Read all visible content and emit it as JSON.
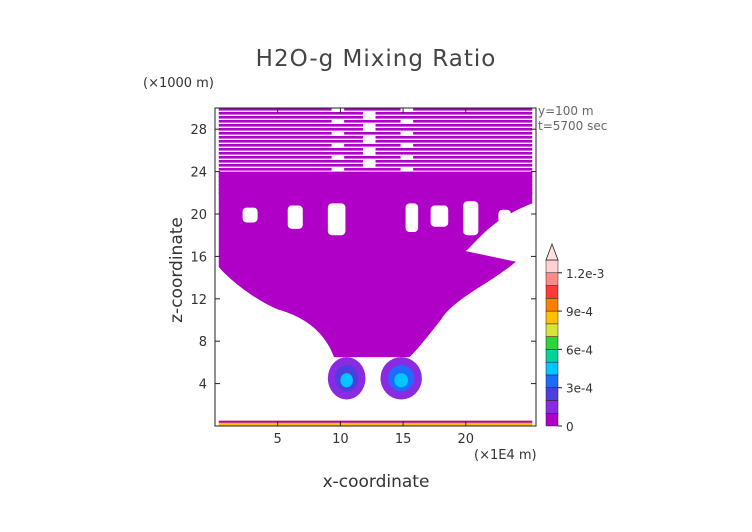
{
  "chart_data": {
    "type": "heatmap",
    "title": "H2O-g Mixing Ratio",
    "xlabel": "x-coordinate",
    "ylabel": "z-coordinate",
    "x_unit": "(×1E4 m)",
    "z_unit": "(×1000 m)",
    "xlim": [
      0,
      25.6
    ],
    "ylim": [
      0,
      30
    ],
    "x_ticks": [
      5,
      10,
      15,
      20
    ],
    "x_tick_labels": [
      "5",
      "10",
      "15",
      "20"
    ],
    "y_ticks": [
      4,
      8,
      12,
      16,
      20,
      24,
      28
    ],
    "y_tick_labels": [
      "4",
      "8",
      "12",
      "16",
      "20",
      "24",
      "28"
    ],
    "annotations": [
      "y=100 m",
      "t=5700 sec"
    ],
    "colorbar": {
      "min": 0,
      "max": 0.0013,
      "ticks": [
        0,
        0.0003,
        0.0006,
        0.0009,
        0.0012
      ],
      "tick_labels": [
        "0",
        "3e-4",
        "6e-4",
        "9e-4",
        "1.2e-3"
      ],
      "extend": "max",
      "colors": [
        "#b000c8",
        "#8a2be2",
        "#4b3fe0",
        "#1e6bff",
        "#00c8ff",
        "#00d49a",
        "#2ed23a",
        "#d8e23a",
        "#ffc000",
        "#ff8000",
        "#ff3a3a",
        "#ff8a8a",
        "#ffd0d0"
      ]
    },
    "features": [
      {
        "name": "upper-moist-layer",
        "value": 3e-05,
        "x_range": [
          0.3,
          25.3
        ],
        "z_range": [
          6,
          30
        ]
      },
      {
        "name": "convective-core-left",
        "value": 0.00045,
        "x_range": [
          9.0,
          12.0
        ],
        "z_range": [
          2.5,
          6.5
        ]
      },
      {
        "name": "convective-core-right",
        "value": 0.0005,
        "x_range": [
          13.2,
          16.5
        ],
        "z_range": [
          2.5,
          6.5
        ]
      },
      {
        "name": "surface-layer",
        "value": 0.0009,
        "x_range": [
          0.3,
          25.3
        ],
        "z_range": [
          0,
          0.5
        ]
      }
    ],
    "grid": false
  }
}
